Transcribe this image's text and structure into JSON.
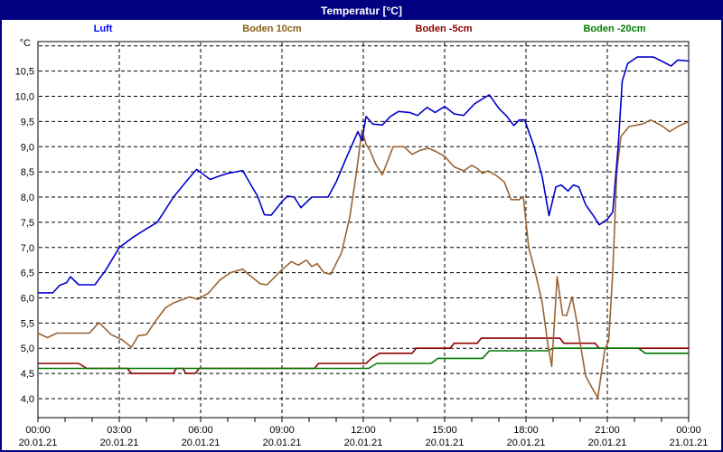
{
  "title": "Temperatur [°C]",
  "legend": [
    {
      "label": "Luft",
      "color": "#0000ff"
    },
    {
      "label": "Boden 10cm",
      "color": "#8a6116"
    },
    {
      "label": "Boden -5cm",
      "color": "#8b0000"
    },
    {
      "label": "Boden -20cm",
      "color": "#008000"
    }
  ],
  "chart_data": {
    "type": "line",
    "title": "Temperatur [°C]",
    "y_axis": {
      "unit_label": "°C",
      "min": 4.0,
      "max": 11.0,
      "tick_step": 0.5,
      "tick_labels": [
        "10,5",
        "10,0",
        "9,5",
        "9,0",
        "8,5",
        "8,0",
        "7,5",
        "7,0",
        "6,5",
        "6,0",
        "5,5",
        "5,0",
        "4,5",
        "4,0"
      ],
      "grid": "dashed"
    },
    "x_axis": {
      "hours_span": 24,
      "major_tick_hours": 3,
      "grid": "dashed",
      "ticks": [
        {
          "time": "00:00",
          "date": "20.01.21"
        },
        {
          "time": "03:00",
          "date": "20.01.21"
        },
        {
          "time": "06:00",
          "date": "20.01.21"
        },
        {
          "time": "09:00",
          "date": "20.01.21"
        },
        {
          "time": "12:00",
          "date": "20.01.21"
        },
        {
          "time": "15:00",
          "date": "20.01.21"
        },
        {
          "time": "18:00",
          "date": "20.01.21"
        },
        {
          "time": "21:00",
          "date": "20.01.21"
        },
        {
          "time": "00:00",
          "date": "21.01.21"
        }
      ]
    },
    "series": [
      {
        "name": "luft",
        "label": "Luft",
        "color": "#0000cc",
        "points": [
          [
            0,
            6.1
          ],
          [
            0.55,
            6.1
          ],
          [
            0.8,
            6.25
          ],
          [
            1.05,
            6.3
          ],
          [
            1.2,
            6.42
          ],
          [
            1.5,
            6.26
          ],
          [
            2.1,
            6.26
          ],
          [
            2.5,
            6.55
          ],
          [
            3,
            7.0
          ],
          [
            3.5,
            7.2
          ],
          [
            4,
            7.37
          ],
          [
            4.4,
            7.5
          ],
          [
            5,
            8.0
          ],
          [
            5.5,
            8.33
          ],
          [
            5.85,
            8.55
          ],
          [
            6.1,
            8.45
          ],
          [
            6.35,
            8.35
          ],
          [
            6.7,
            8.42
          ],
          [
            7,
            8.47
          ],
          [
            7.3,
            8.5
          ],
          [
            7.55,
            8.53
          ],
          [
            7.9,
            8.2
          ],
          [
            8.1,
            8.02
          ],
          [
            8.35,
            7.65
          ],
          [
            8.6,
            7.64
          ],
          [
            9,
            7.91
          ],
          [
            9.2,
            8.02
          ],
          [
            9.45,
            8.0
          ],
          [
            9.7,
            7.79
          ],
          [
            10.1,
            8.0
          ],
          [
            10.7,
            8.0
          ],
          [
            11,
            8.3
          ],
          [
            11.35,
            8.75
          ],
          [
            11.8,
            9.3
          ],
          [
            11.95,
            9.12
          ],
          [
            12.1,
            9.6
          ],
          [
            12.35,
            9.45
          ],
          [
            12.7,
            9.43
          ],
          [
            13,
            9.6
          ],
          [
            13.3,
            9.7
          ],
          [
            13.7,
            9.68
          ],
          [
            14,
            9.62
          ],
          [
            14.35,
            9.78
          ],
          [
            14.65,
            9.68
          ],
          [
            15,
            9.8
          ],
          [
            15.35,
            9.65
          ],
          [
            15.7,
            9.62
          ],
          [
            16.1,
            9.85
          ],
          [
            16.4,
            9.95
          ],
          [
            16.65,
            10.03
          ],
          [
            17,
            9.76
          ],
          [
            17.3,
            9.6
          ],
          [
            17.55,
            9.42
          ],
          [
            17.75,
            9.53
          ],
          [
            17.95,
            9.53
          ],
          [
            18.3,
            9.0
          ],
          [
            18.6,
            8.4
          ],
          [
            18.85,
            7.63
          ],
          [
            19.1,
            8.2
          ],
          [
            19.3,
            8.24
          ],
          [
            19.55,
            8.12
          ],
          [
            19.75,
            8.24
          ],
          [
            19.95,
            8.2
          ],
          [
            20.2,
            7.85
          ],
          [
            20.5,
            7.62
          ],
          [
            20.7,
            7.45
          ],
          [
            21,
            7.56
          ],
          [
            21.2,
            7.7
          ],
          [
            21.4,
            9.0
          ],
          [
            21.55,
            10.3
          ],
          [
            21.75,
            10.65
          ],
          [
            22.1,
            10.78
          ],
          [
            22.7,
            10.78
          ],
          [
            23,
            10.7
          ],
          [
            23.35,
            10.6
          ],
          [
            23.6,
            10.72
          ],
          [
            24,
            10.7
          ]
        ]
      },
      {
        "name": "boden_10cm",
        "label": "Boden 10cm",
        "color": "#9a6433",
        "points": [
          [
            0,
            5.3
          ],
          [
            0.35,
            5.21
          ],
          [
            0.7,
            5.3
          ],
          [
            1.9,
            5.3
          ],
          [
            2.25,
            5.51
          ],
          [
            2.7,
            5.27
          ],
          [
            3.1,
            5.17
          ],
          [
            3.45,
            5.02
          ],
          [
            3.7,
            5.25
          ],
          [
            4,
            5.27
          ],
          [
            4.35,
            5.55
          ],
          [
            4.7,
            5.8
          ],
          [
            5,
            5.9
          ],
          [
            5.6,
            6.02
          ],
          [
            5.9,
            5.97
          ],
          [
            6.3,
            6.1
          ],
          [
            6.7,
            6.35
          ],
          [
            7.1,
            6.5
          ],
          [
            7.55,
            6.57
          ],
          [
            7.8,
            6.45
          ],
          [
            8.2,
            6.28
          ],
          [
            8.45,
            6.26
          ],
          [
            9,
            6.56
          ],
          [
            9.35,
            6.72
          ],
          [
            9.6,
            6.65
          ],
          [
            9.9,
            6.75
          ],
          [
            10.1,
            6.62
          ],
          [
            10.3,
            6.68
          ],
          [
            10.55,
            6.5
          ],
          [
            10.8,
            6.47
          ],
          [
            11.2,
            6.9
          ],
          [
            11.5,
            7.6
          ],
          [
            11.75,
            8.5
          ],
          [
            11.95,
            9.33
          ],
          [
            12.1,
            9.05
          ],
          [
            12.25,
            8.92
          ],
          [
            12.45,
            8.66
          ],
          [
            12.7,
            8.44
          ],
          [
            13.1,
            9.0
          ],
          [
            13.5,
            9.0
          ],
          [
            13.8,
            8.85
          ],
          [
            14.1,
            8.93
          ],
          [
            14.4,
            8.97
          ],
          [
            14.7,
            8.9
          ],
          [
            15,
            8.81
          ],
          [
            15.35,
            8.6
          ],
          [
            15.7,
            8.52
          ],
          [
            16,
            8.63
          ],
          [
            16.2,
            8.57
          ],
          [
            16.4,
            8.47
          ],
          [
            16.6,
            8.52
          ],
          [
            16.9,
            8.43
          ],
          [
            17.2,
            8.3
          ],
          [
            17.45,
            7.95
          ],
          [
            17.75,
            7.95
          ],
          [
            17.9,
            8.01
          ],
          [
            18.1,
            7.0
          ],
          [
            18.35,
            6.49
          ],
          [
            18.6,
            5.9
          ],
          [
            18.8,
            5.1
          ],
          [
            18.95,
            4.64
          ],
          [
            19.15,
            6.42
          ],
          [
            19.35,
            5.66
          ],
          [
            19.5,
            5.65
          ],
          [
            19.7,
            6.02
          ],
          [
            19.85,
            5.6
          ],
          [
            20,
            5.1
          ],
          [
            20.2,
            4.45
          ],
          [
            20.45,
            4.2
          ],
          [
            20.65,
            4.02
          ],
          [
            20.9,
            4.95
          ],
          [
            21.05,
            5.15
          ],
          [
            21.2,
            6.5
          ],
          [
            21.35,
            8.5
          ],
          [
            21.5,
            9.2
          ],
          [
            21.8,
            9.4
          ],
          [
            22.3,
            9.45
          ],
          [
            22.6,
            9.53
          ],
          [
            23,
            9.42
          ],
          [
            23.3,
            9.3
          ],
          [
            23.6,
            9.4
          ],
          [
            24,
            9.5
          ]
        ]
      },
      {
        "name": "boden_minus5cm",
        "label": "Boden -5cm",
        "color": "#8b0000",
        "points": [
          [
            0,
            4.7
          ],
          [
            1.5,
            4.7
          ],
          [
            1.8,
            4.6
          ],
          [
            3.3,
            4.6
          ],
          [
            3.45,
            4.5
          ],
          [
            5,
            4.5
          ],
          [
            5.1,
            4.6
          ],
          [
            5.35,
            4.6
          ],
          [
            5.45,
            4.5
          ],
          [
            5.8,
            4.5
          ],
          [
            5.95,
            4.6
          ],
          [
            10.2,
            4.6
          ],
          [
            10.35,
            4.7
          ],
          [
            12.1,
            4.7
          ],
          [
            12.3,
            4.8
          ],
          [
            12.6,
            4.9
          ],
          [
            13.8,
            4.9
          ],
          [
            13.95,
            5.0
          ],
          [
            15.2,
            5.0
          ],
          [
            15.35,
            5.1
          ],
          [
            16.2,
            5.1
          ],
          [
            16.35,
            5.2
          ],
          [
            19.25,
            5.2
          ],
          [
            19.4,
            5.1
          ],
          [
            20.55,
            5.1
          ],
          [
            20.7,
            5.0
          ],
          [
            24,
            5.0
          ]
        ]
      },
      {
        "name": "boden_minus20cm",
        "label": "Boden -20cm",
        "color": "#007700",
        "points": [
          [
            0,
            4.6
          ],
          [
            12.2,
            4.6
          ],
          [
            12.5,
            4.7
          ],
          [
            14.5,
            4.7
          ],
          [
            14.75,
            4.8
          ],
          [
            16.4,
            4.8
          ],
          [
            16.65,
            4.95
          ],
          [
            18.8,
            4.95
          ],
          [
            19,
            5.0
          ],
          [
            22.15,
            5.0
          ],
          [
            22.4,
            4.9
          ],
          [
            24,
            4.9
          ]
        ]
      }
    ]
  }
}
